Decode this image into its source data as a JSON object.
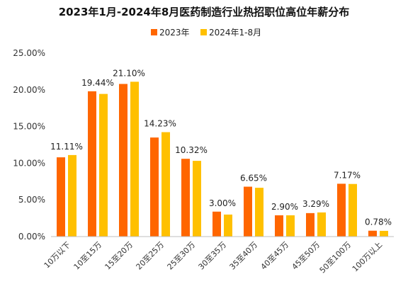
{
  "chart_data": {
    "type": "bar",
    "title": "2023年1月-2024年8月医药制造行业热招职位高位年薪分布",
    "categories": [
      "10万以下",
      "10至15万",
      "15至20万",
      "20至25万",
      "25至30万",
      "30至35万",
      "35至40万",
      "40至45万",
      "45至50万",
      "50至100万",
      "100万以上"
    ],
    "series": [
      {
        "name": "2023年",
        "color": "#FF6600",
        "values": [
          10.8,
          19.8,
          20.8,
          13.5,
          10.6,
          3.4,
          6.8,
          2.9,
          3.2,
          7.2,
          0.8
        ]
      },
      {
        "name": "2024年1-8月",
        "color": "#FFC000",
        "values": [
          11.11,
          19.44,
          21.1,
          14.23,
          10.32,
          3.0,
          6.65,
          2.9,
          3.29,
          7.17,
          0.78
        ]
      }
    ],
    "data_labels": [
      "11.11%",
      "19.44%",
      "21.10%",
      "14.23%",
      "10.32%",
      "3.00%",
      "6.65%",
      "2.90%",
      "3.29%",
      "7.17%",
      "0.78%"
    ],
    "ylim": [
      0,
      25
    ],
    "yticks": [
      "0.00%",
      "5.00%",
      "10.00%",
      "15.00%",
      "20.00%",
      "25.00%"
    ],
    "legend_position": "top",
    "grid": false
  }
}
